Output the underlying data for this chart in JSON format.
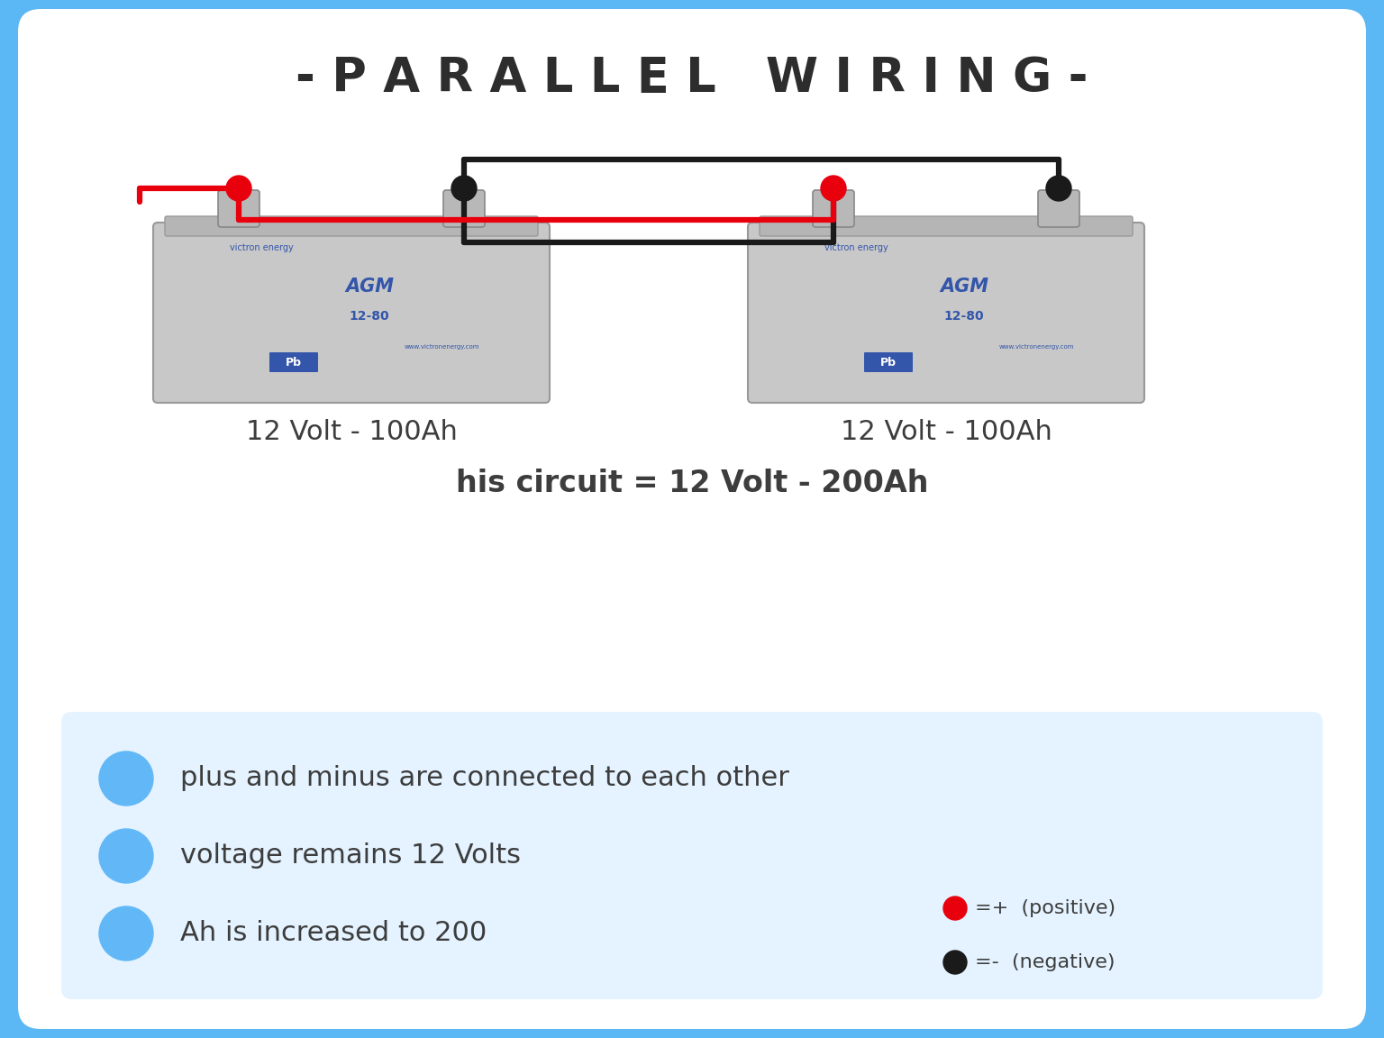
{
  "title": "- P A R A L L E L   W I R I N G -",
  "title_fontsize": 38,
  "title_color": "#2d2d2d",
  "bg_outer": "#5bb8f5",
  "bg_inner": "#ffffff",
  "battery_label_1": "12 Volt - 100Ah",
  "battery_label_2": "12 Volt - 100Ah",
  "circuit_label": "his circuit = 12 Volt - 200Ah",
  "bullet_points": [
    "plus and minus are connected to each other",
    "voltage remains 12 Volts",
    "Ah is increased to 200"
  ],
  "bullet_color": "#62b8f6",
  "label_fontsize": 22,
  "circuit_fontsize": 24,
  "bullet_fontsize": 22,
  "positive_color": "#e8000d",
  "negative_color": "#1a1a1a",
  "wire_black_color": "#1a1a1a",
  "wire_red_color": "#e8000d",
  "text_color": "#3d3d3d",
  "legend_pos_label": "=+  (positive)",
  "legend_neg_label": "=-  (negative)",
  "legend_fontsize": 16
}
